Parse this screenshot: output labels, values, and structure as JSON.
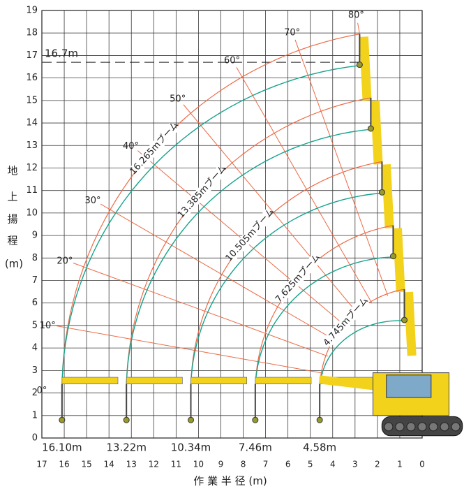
{
  "chart_data": {
    "type": "working-range",
    "xlim": [
      17,
      0
    ],
    "ylim": [
      0,
      19
    ],
    "xticks": [
      17,
      16,
      15,
      14,
      13,
      12,
      11,
      10,
      9,
      8,
      7,
      6,
      5,
      4,
      3,
      2,
      1,
      0
    ],
    "yticks": [
      0,
      1,
      2,
      3,
      4,
      5,
      6,
      7,
      8,
      9,
      10,
      11,
      12,
      13,
      14,
      15,
      16,
      17,
      18,
      19
    ],
    "y_label": [
      "地",
      "上",
      "揚",
      "程",
      "(m)"
    ],
    "x_label": "作 業 半 径 (m)",
    "max_height": {
      "value": 16.7,
      "label": "16.7m"
    },
    "angles": [
      {
        "value": 0,
        "label": "0°"
      },
      {
        "value": 10,
        "label": "10°"
      },
      {
        "value": 20,
        "label": "20°"
      },
      {
        "value": 30,
        "label": "30°"
      },
      {
        "value": 40,
        "label": "40°"
      },
      {
        "value": 50,
        "label": "50°"
      },
      {
        "value": 60,
        "label": "60°"
      },
      {
        "value": 70,
        "label": "70°"
      },
      {
        "value": 80,
        "label": "80°"
      }
    ],
    "booms": [
      {
        "name": "16.265mブーム",
        "min_radius": {
          "value": 16.1,
          "label": "16.10m"
        }
      },
      {
        "name": "13.385mブーム",
        "min_radius": {
          "value": 13.22,
          "label": "13.22m"
        }
      },
      {
        "name": "10.505mブーム",
        "min_radius": {
          "value": 10.34,
          "label": "10.34m"
        }
      },
      {
        "name": "7.625mブーム",
        "min_radius": {
          "value": 7.46,
          "label": "7.46m"
        }
      },
      {
        "name": "4.745mブーム",
        "min_radius": {
          "value": 4.58,
          "label": "4.58m"
        }
      }
    ],
    "colors": {
      "boom_arc": "#ec6a46",
      "hook_arc": "#17a38d",
      "grid": "#3a3a3a",
      "crane": "#f2d21b"
    }
  }
}
